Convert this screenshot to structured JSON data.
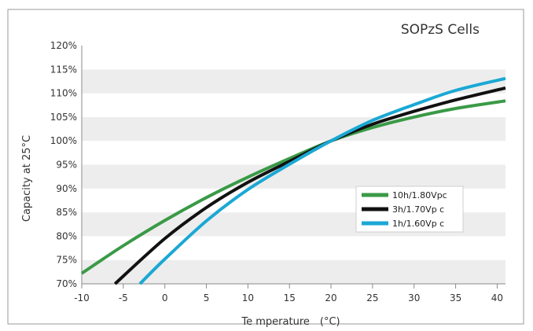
{
  "chart_data": {
    "type": "line",
    "title": "SOPzS Cells",
    "xlabel": "Te mperature　(°C)",
    "ylabel": "Capacity at 25°C",
    "xlim": [
      -10,
      41
    ],
    "ylim": [
      70,
      120
    ],
    "x_ticks": [
      -10,
      -5,
      0,
      5,
      10,
      15,
      20,
      25,
      30,
      35,
      40
    ],
    "x_tick_labels": [
      "-10",
      "-5",
      "0",
      "5",
      "10",
      "15",
      "20",
      "25",
      "30",
      "35",
      "40"
    ],
    "y_ticks": [
      70,
      75,
      80,
      85,
      90,
      95,
      100,
      105,
      110,
      115,
      120
    ],
    "y_tick_labels": [
      "70%",
      "75%",
      "80%",
      "85%",
      "90%",
      "95%",
      "100%",
      "105%",
      "110%",
      "115%",
      "120%"
    ],
    "grid": "horizontal bands",
    "legend_position": "right-center",
    "series": [
      {
        "name": "10h/1.80Vpc",
        "color": "#3a9a47",
        "x": [
          -10,
          -5,
          0,
          5,
          10,
          15,
          20,
          25,
          30,
          35,
          41
        ],
        "y": [
          72.2,
          78.0,
          83.3,
          88.1,
          92.4,
          96.3,
          100.0,
          102.8,
          105.0,
          106.8,
          108.4
        ]
      },
      {
        "name": "3h/1.70Vp c",
        "color": "#111111",
        "x": [
          -6,
          0,
          5,
          10,
          15,
          20,
          25,
          30,
          35,
          41
        ],
        "y": [
          70.0,
          79.5,
          86.0,
          91.3,
          95.7,
          100.0,
          103.5,
          106.2,
          108.6,
          111.1
        ]
      },
      {
        "name": "1h/1.60Vp c",
        "color": "#1ba8d4",
        "x": [
          -3,
          0,
          5,
          10,
          15,
          20,
          25,
          30,
          35,
          41
        ],
        "y": [
          70.0,
          75.2,
          83.2,
          89.8,
          95.1,
          100.0,
          104.3,
          107.6,
          110.6,
          113.1
        ]
      }
    ]
  }
}
